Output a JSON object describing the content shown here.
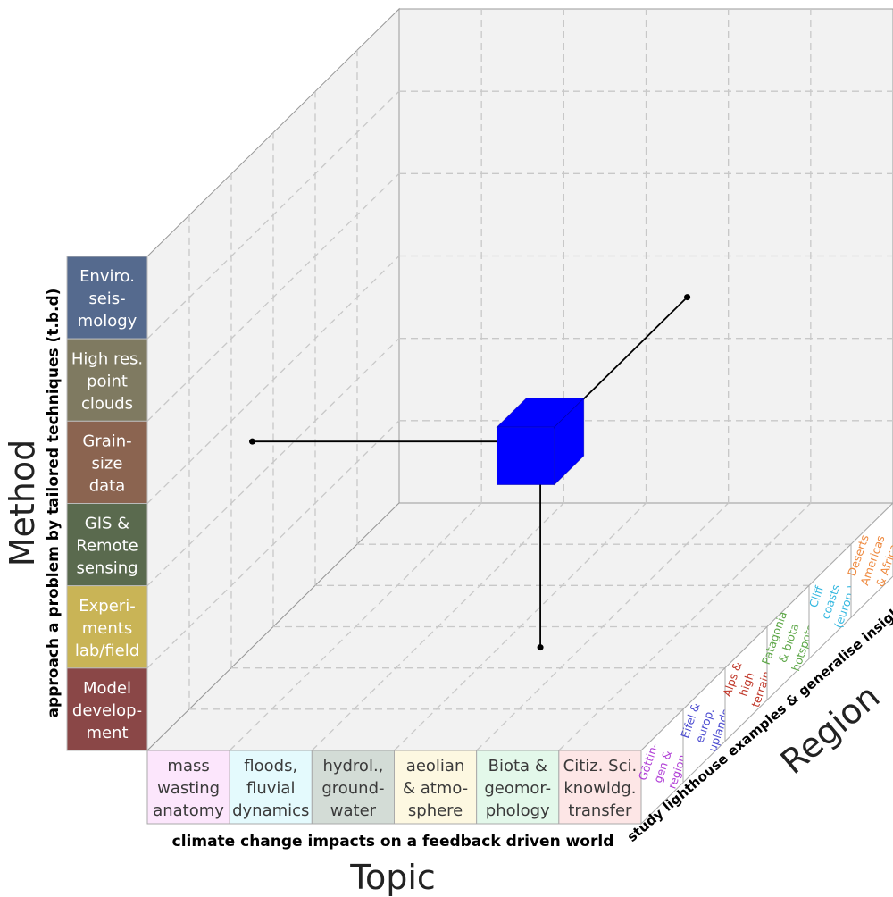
{
  "diagram": {
    "axes": {
      "method": {
        "label": "Method",
        "subtitle": "approach a problem by tailored techniques (t.b.d)",
        "cells": [
          {
            "lines": [
              "Enviro.",
              "seis-",
              "mology"
            ],
            "fill": "#556a8e",
            "text_color": "#ffffff"
          },
          {
            "lines": [
              "High res.",
              "point",
              "clouds"
            ],
            "fill": "#7f7a61",
            "text_color": "#ffffff"
          },
          {
            "lines": [
              "Grain-",
              "size",
              "data"
            ],
            "fill": "#8b6450",
            "text_color": "#ffffff"
          },
          {
            "lines": [
              "GIS &",
              "Remote",
              "sensing"
            ],
            "fill": "#5a6a4e",
            "text_color": "#ffffff"
          },
          {
            "lines": [
              "Experi-",
              "ments",
              "lab/field"
            ],
            "fill": "#c9b456",
            "text_color": "#ffffff"
          },
          {
            "lines": [
              "Model",
              "develop-",
              "ment"
            ],
            "fill": "#8a4747",
            "text_color": "#ffffff"
          }
        ]
      },
      "topic": {
        "label": "Topic",
        "subtitle": "climate change impacts on a feedback driven world",
        "cells": [
          {
            "lines": [
              "mass",
              "wasting",
              "anatomy"
            ],
            "fill": "#fce6fc",
            "text_color": "#3a3a3a"
          },
          {
            "lines": [
              "floods,",
              "fluvial",
              "dynamics"
            ],
            "fill": "#e4fafd",
            "text_color": "#3a3a3a"
          },
          {
            "lines": [
              "hydrol.,",
              "ground-",
              "water"
            ],
            "fill": "#d3dcd6",
            "text_color": "#3a3a3a"
          },
          {
            "lines": [
              "aeolian",
              "& atmo-",
              "sphere"
            ],
            "fill": "#fdf8e1",
            "text_color": "#3a3a3a"
          },
          {
            "lines": [
              "Biota &",
              "geomor-",
              "phology"
            ],
            "fill": "#e3f8ea",
            "text_color": "#3a3a3a"
          },
          {
            "lines": [
              "Citiz. Sci.",
              "knowldg.",
              "transfer"
            ],
            "fill": "#fde6e6",
            "text_color": "#3a3a3a"
          }
        ]
      },
      "region": {
        "label": "Region",
        "subtitle": "study lighthouse examples & generalise insights",
        "cells": [
          {
            "lines": [
              "Göttin-",
              "gen &",
              "region"
            ],
            "fill": "#ffffff",
            "text_color": "#b03ed6"
          },
          {
            "lines": [
              "Eifel &",
              "europ.",
              "uplands"
            ],
            "fill": "#ffffff",
            "text_color": "#4a4ad0"
          },
          {
            "lines": [
              "Alps &",
              "high",
              "terrain"
            ],
            "fill": "#ffffff",
            "text_color": "#c0392b"
          },
          {
            "lines": [
              "Patagonia",
              "& biota",
              "hotspots"
            ],
            "fill": "#ffffff",
            "text_color": "#5fa84a"
          },
          {
            "lines": [
              "Cliff",
              "coasts",
              "(europ.)"
            ],
            "fill": "#ffffff",
            "text_color": "#35b8e0"
          },
          {
            "lines": [
              "Deserts",
              "Americas",
              "& Africa"
            ],
            "fill": "#ffffff",
            "text_color": "#ee8a40"
          }
        ]
      }
    },
    "marker": {
      "method_index": 2,
      "topic_index": 3,
      "region_index": 2,
      "color": "#0000ff"
    },
    "colors": {
      "grid": "#c8c8c8",
      "pane": "#f2f2f2",
      "edge": "#999999",
      "stem": "#000000"
    }
  }
}
